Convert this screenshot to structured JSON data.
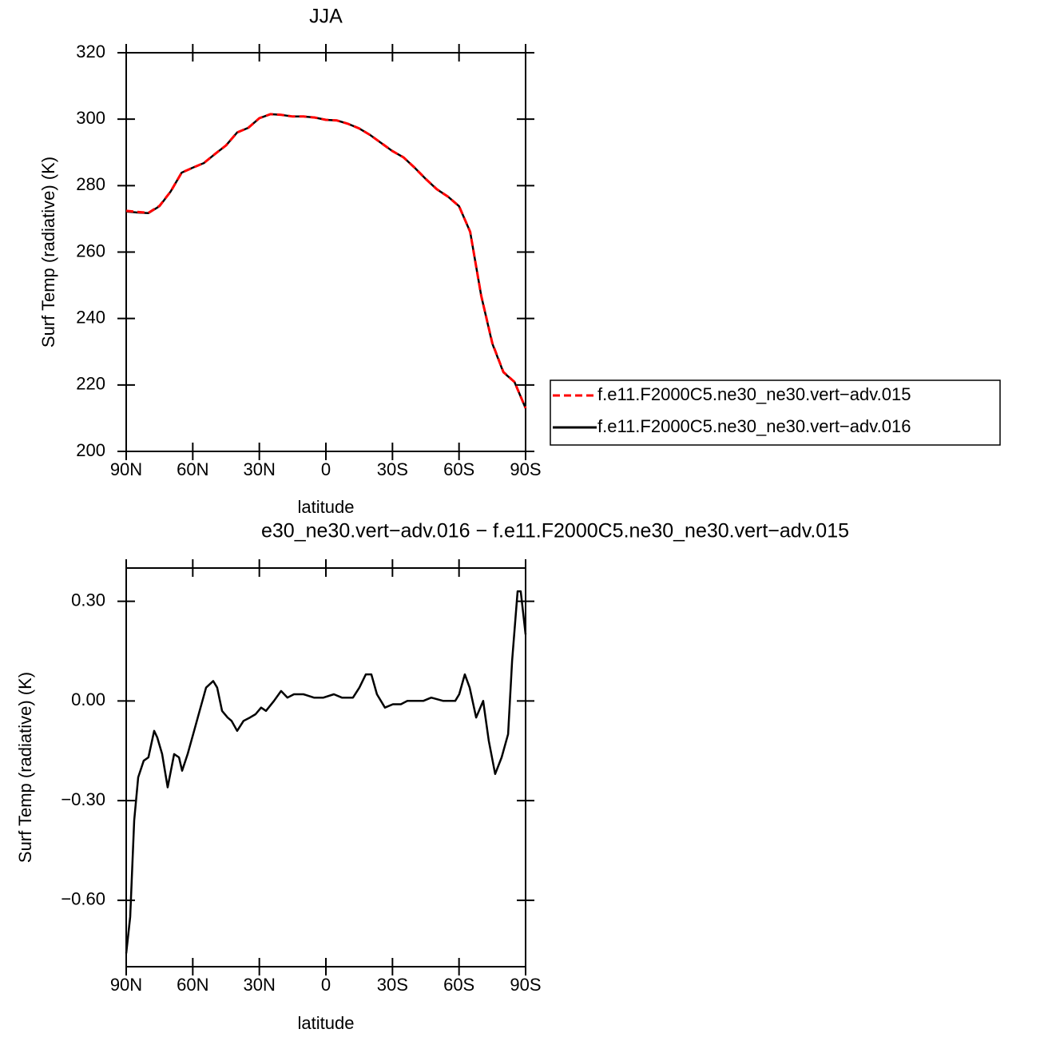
{
  "chart_data": [
    {
      "type": "line",
      "title": "JJA",
      "xlabel": "latitude",
      "ylabel": "Surf Temp (radiative) (K)",
      "xlim": [
        90,
        -90
      ],
      "xticks": [
        {
          "value": 90,
          "label": "90N"
        },
        {
          "value": 60,
          "label": "60N"
        },
        {
          "value": 30,
          "label": "30N"
        },
        0,
        {
          "value": -30,
          "label": "30S"
        },
        {
          "value": -60,
          "label": "60S"
        },
        {
          "value": -90,
          "label": "90S"
        }
      ],
      "ylim": [
        200,
        320
      ],
      "yticks": [
        200,
        220,
        240,
        260,
        280,
        300,
        320
      ],
      "legend": "right",
      "x": [
        90,
        85,
        80,
        75,
        70,
        65,
        60,
        55,
        50,
        45,
        40,
        35,
        30,
        25,
        20,
        15,
        10,
        5,
        0,
        -5,
        -10,
        -15,
        -20,
        -25,
        -30,
        -35,
        -40,
        -45,
        -50,
        -55,
        -60,
        -65,
        -70,
        -75,
        -80,
        -85,
        -90
      ],
      "series": [
        {
          "name": "f.e11.F2000C5.ne30_ne30.vert−adv.015",
          "color": "#ff0000",
          "style": "dashed",
          "values": [
            272.4,
            272.1,
            271.8,
            273.9,
            278.2,
            283.9,
            285.4,
            286.8,
            289.5,
            292.1,
            296,
            297.4,
            300.3,
            301.5,
            301.3,
            300.8,
            300.8,
            300.5,
            299.8,
            299.6,
            298.6,
            297.2,
            295.2,
            292.8,
            290.4,
            288.5,
            285.4,
            282,
            278.9,
            276.7,
            273.8,
            266.1,
            246.9,
            232.6,
            223.9,
            220.9,
            213
          ]
        },
        {
          "name": "f.e11.F2000C5.ne30_ne30.vert−adv.016",
          "color": "#000000",
          "style": "solid",
          "values": [
            272.2,
            271.9,
            271.7,
            273.8,
            278.2,
            283.9,
            285.4,
            286.8,
            289.5,
            292.1,
            296,
            297.4,
            300.3,
            301.5,
            301.3,
            300.8,
            300.8,
            300.5,
            299.8,
            299.6,
            298.6,
            297.2,
            295.2,
            292.8,
            290.4,
            288.5,
            285.4,
            282,
            278.9,
            276.7,
            273.8,
            266.1,
            246.9,
            232.5,
            223.8,
            220.9,
            213
          ]
        }
      ]
    },
    {
      "type": "line",
      "title": "e30_ne30.vert−adv.016 − f.e11.F2000C5.ne30_ne30.vert−adv.015",
      "xlabel": "latitude",
      "ylabel": "Surf Temp (radiative) (K)",
      "xlim": [
        90,
        -90
      ],
      "xticks": [
        {
          "value": 90,
          "label": "90N"
        },
        {
          "value": 60,
          "label": "60N"
        },
        {
          "value": 30,
          "label": "30N"
        },
        0,
        {
          "value": -30,
          "label": "30S"
        },
        {
          "value": -60,
          "label": "60S"
        },
        {
          "value": -90,
          "label": "90S"
        }
      ],
      "ylim": [
        -0.8,
        0.4
      ],
      "yticks": [
        {
          "value": -0.6,
          "label": "−0.60"
        },
        {
          "value": -0.3,
          "label": "−0.30"
        },
        {
          "value": 0,
          "label": "0.00"
        },
        {
          "value": 0.3,
          "label": "0.30"
        }
      ],
      "x": [
        90,
        88.2,
        86.4,
        84.6,
        82.1,
        80,
        77.4,
        76,
        73.8,
        71.3,
        68.4,
        66.2,
        64.8,
        62.3,
        59.4,
        56.9,
        54,
        50.8,
        49,
        46.8,
        44.3,
        42.5,
        40,
        37.1,
        34.2,
        31.7,
        29.2,
        27,
        23.4,
        20.2,
        17.3,
        14.4,
        10.1,
        5.4,
        1.1,
        -3.6,
        -7.2,
        -12.2,
        -15.1,
        -18,
        -20.5,
        -23,
        -26.6,
        -30.2,
        -33.8,
        -36.7,
        -40.3,
        -43.9,
        -47.5,
        -52.9,
        -58.3,
        -60.1,
        -62.6,
        -64.8,
        -67.7,
        -70.9,
        -73.4,
        -76.3,
        -79.2,
        -82.1,
        -83.9,
        -86.4,
        -87.8,
        -90
      ],
      "series": [
        {
          "color": "#000000",
          "style": "solid",
          "values": [
            -0.76,
            -0.65,
            -0.36,
            -0.23,
            -0.18,
            -0.17,
            -0.09,
            -0.11,
            -0.16,
            -0.26,
            -0.16,
            -0.17,
            -0.21,
            -0.16,
            -0.09,
            -0.03,
            0.04,
            0.06,
            0.04,
            -0.03,
            -0.05,
            -0.06,
            -0.09,
            -0.06,
            -0.05,
            -0.04,
            -0.02,
            -0.03,
            0,
            0.03,
            0.01,
            0.02,
            0.02,
            0.01,
            0.01,
            0.02,
            0.01,
            0.01,
            0.04,
            0.08,
            0.08,
            0.02,
            -0.02,
            -0.01,
            -0.01,
            0,
            0,
            0,
            0.01,
            0,
            0,
            0.02,
            0.08,
            0.04,
            -0.05,
            0,
            -0.12,
            -0.22,
            -0.17,
            -0.1,
            0.12,
            0.33,
            0.33,
            0.2
          ]
        }
      ]
    }
  ]
}
